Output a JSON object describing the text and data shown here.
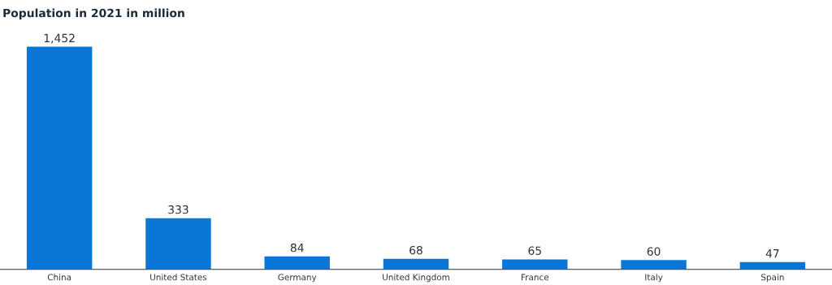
{
  "chart_data": {
    "type": "bar",
    "title": "Population in 2021 in million",
    "categories": [
      "China",
      "United States",
      "Germany",
      "United Kingdom",
      "France",
      "Italy",
      "Spain"
    ],
    "values": [
      1452,
      333,
      84,
      68,
      65,
      60,
      47
    ],
    "value_labels": [
      "1,452",
      "333",
      "84",
      "68",
      "65",
      "60",
      "47"
    ],
    "color": "#0a77d6",
    "grid": false,
    "legend": false
  }
}
